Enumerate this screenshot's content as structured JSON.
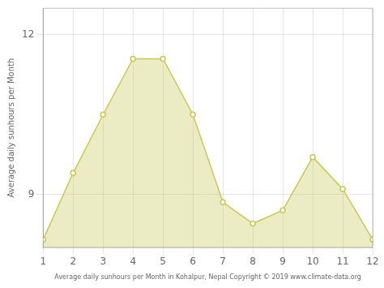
{
  "chart_data": {
    "type": "area",
    "x": [
      1,
      2,
      3,
      4,
      5,
      6,
      7,
      8,
      9,
      10,
      11,
      12
    ],
    "values": [
      8.15,
      9.4,
      10.5,
      11.55,
      11.55,
      10.5,
      8.85,
      8.45,
      8.7,
      9.7,
      9.1,
      8.15
    ],
    "color": "#C8C855",
    "xlabel": "Average daily sunhours per Month in Kohalpur, Nepal Copyright © 2019 www.climate-data.org",
    "ylabel": "Average daily sunhours per Month",
    "xlim": [
      1,
      12
    ],
    "ylim": [
      8.0,
      12.5
    ],
    "xticks": [
      1,
      2,
      3,
      4,
      5,
      6,
      7,
      8,
      9,
      10,
      11,
      12
    ],
    "yticks": [
      9,
      12
    ],
    "grid": true
  }
}
